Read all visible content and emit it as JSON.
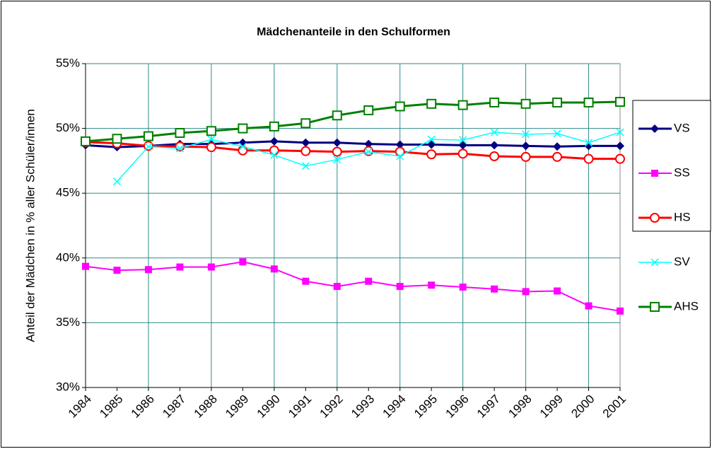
{
  "chart_data": {
    "type": "line",
    "title": "Mädchenanteile in den Schulformen",
    "y_label": "Anteil der Mädchen in % aller Schüler/innen",
    "categories": [
      "1984",
      "1985",
      "1986",
      "1987",
      "1988",
      "1989",
      "1990",
      "1991",
      "1992",
      "1993",
      "1994",
      "1995",
      "1996",
      "1997",
      "1998",
      "1999",
      "2000",
      "2001"
    ],
    "series": [
      {
        "name": "VS",
        "color": "#000080",
        "marker": "diamond",
        "values": [
          48.7,
          48.55,
          48.65,
          48.8,
          48.8,
          48.9,
          49.0,
          48.9,
          48.9,
          48.8,
          48.75,
          48.75,
          48.7,
          48.7,
          48.65,
          48.6,
          48.65,
          48.65
        ]
      },
      {
        "name": "SS",
        "color": "#ff00ff",
        "marker": "square",
        "values": [
          39.35,
          39.05,
          39.1,
          39.3,
          39.3,
          39.7,
          39.15,
          38.2,
          37.8,
          38.2,
          37.8,
          37.9,
          37.75,
          37.6,
          37.4,
          37.45,
          36.3,
          35.9
        ]
      },
      {
        "name": "HS",
        "color": "#ff0000",
        "marker": "circle",
        "values": [
          48.95,
          48.85,
          48.65,
          48.6,
          48.55,
          48.3,
          48.3,
          48.25,
          48.2,
          48.25,
          48.2,
          48.0,
          48.05,
          47.85,
          47.8,
          47.8,
          47.65,
          47.65
        ]
      },
      {
        "name": "SV",
        "color": "#00ffff",
        "marker": "x",
        "values": [
          null,
          45.9,
          48.6,
          48.45,
          49.15,
          48.6,
          47.95,
          47.1,
          47.6,
          48.2,
          47.85,
          49.15,
          49.1,
          49.7,
          49.55,
          49.6,
          48.9,
          49.7
        ]
      },
      {
        "name": "AHS",
        "color": "#008000",
        "marker": "open-square",
        "values": [
          49.0,
          49.2,
          49.4,
          49.65,
          49.8,
          50.0,
          50.15,
          50.4,
          51.0,
          51.4,
          51.7,
          51.9,
          51.8,
          52.0,
          51.9,
          52.0,
          52.0,
          52.05
        ]
      }
    ],
    "ylim": [
      30,
      55
    ],
    "yticks": [
      {
        "value": 30,
        "label": "30%"
      },
      {
        "value": 35,
        "label": "35%"
      },
      {
        "value": 40,
        "label": "40%"
      },
      {
        "value": 45,
        "label": "45%"
      },
      {
        "value": 50,
        "label": "50%"
      },
      {
        "value": 55,
        "label": "55%"
      }
    ],
    "grid": true,
    "grid_color": "#2e8b8b",
    "legend": "right"
  }
}
